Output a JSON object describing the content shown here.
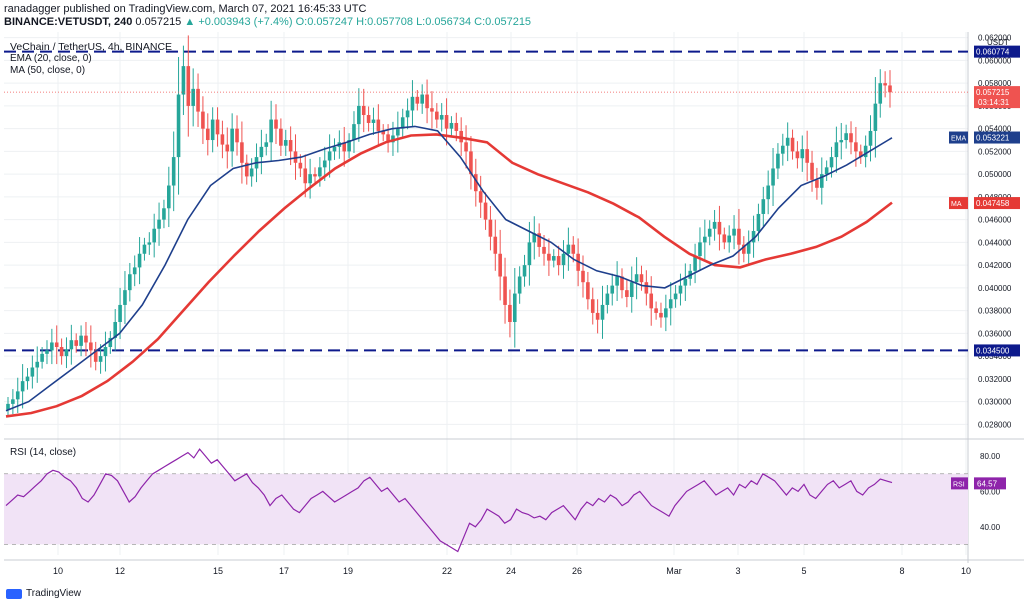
{
  "header": {
    "publisher_line": "ranadagger published on TradingView.com, March 07, 2021 16:45:33 UTC",
    "symbol": "BINANCE:VETUSDT, 240",
    "last": "0.057215",
    "change": "▲ +0.003943 (+7.4%)",
    "ohlc": "O:0.057247 H:0.057708 L:0.056734 C:0.057215"
  },
  "legend": {
    "title": "VeChain / TetherUS, 4h, BINANCE",
    "ema": "EMA (20, close, 0)",
    "ma": "MA (50, close, 0)",
    "rsi": "RSI (14, close)",
    "currency": "USDT"
  },
  "brand": "TradingView",
  "colors": {
    "up": "#26a69a",
    "down": "#ef5350",
    "ema": "#1e3f8c",
    "ma": "#e53935",
    "level": "#0d1a8c",
    "rsi": "#8e24aa",
    "rsi_band": "#f1e3f6"
  },
  "chart_data": [
    {
      "type": "candlestick",
      "title": "VeChain / TetherUS, 4h, BINANCE",
      "x_ticks": [
        "10",
        "12",
        "15",
        "17",
        "19",
        "22",
        "24",
        "26",
        "Mar",
        "3",
        "5",
        "8",
        "10"
      ],
      "y_ticks": [
        "0.028000",
        "0.030000",
        "0.032000",
        "0.034000",
        "0.036000",
        "0.038000",
        "0.040000",
        "0.042000",
        "0.044000",
        "0.046000",
        "0.048000",
        "0.050000",
        "0.052000",
        "0.054000",
        "0.056000",
        "0.058000",
        "0.060000",
        "0.062000"
      ],
      "ylim": [
        0.0268,
        0.0625
      ],
      "horizontal_levels": [
        {
          "value": 0.060774,
          "label": "0.060774"
        },
        {
          "value": 0.0345,
          "label": "0.034500"
        }
      ],
      "price_labels": {
        "last": "0.057215",
        "countdown": "03:14:31",
        "ema": "0.053221",
        "ma": "0.047458"
      },
      "series_names": [
        "EMA",
        "MA"
      ],
      "candles_close_approx": [
        0.0298,
        0.0302,
        0.0309,
        0.0318,
        0.0322,
        0.033,
        0.0335,
        0.0342,
        0.0345,
        0.0352,
        0.0348,
        0.034,
        0.0346,
        0.0354,
        0.0349,
        0.0358,
        0.0352,
        0.0345,
        0.0335,
        0.034,
        0.0348,
        0.0356,
        0.037,
        0.0385,
        0.0398,
        0.0412,
        0.0418,
        0.043,
        0.0438,
        0.044,
        0.0452,
        0.046,
        0.047,
        0.049,
        0.0515,
        0.057,
        0.0595,
        0.056,
        0.0575,
        0.0555,
        0.054,
        0.053,
        0.0548,
        0.0535,
        0.0526,
        0.052,
        0.054,
        0.0528,
        0.051,
        0.0498,
        0.0505,
        0.0515,
        0.0524,
        0.0528,
        0.0548,
        0.054,
        0.0525,
        0.053,
        0.052,
        0.051,
        0.0505,
        0.0492,
        0.05,
        0.0498,
        0.0506,
        0.0512,
        0.052,
        0.0524,
        0.0528,
        0.052,
        0.053,
        0.0544,
        0.056,
        0.0552,
        0.0545,
        0.0548,
        0.0538,
        0.0535,
        0.0528,
        0.0534,
        0.054,
        0.055,
        0.0556,
        0.0568,
        0.0562,
        0.057,
        0.0558,
        0.0555,
        0.0548,
        0.0552,
        0.054,
        0.0545,
        0.0538,
        0.0528,
        0.052,
        0.05,
        0.0485,
        0.0475,
        0.046,
        0.0445,
        0.043,
        0.041,
        0.0385,
        0.037,
        0.0395,
        0.041,
        0.042,
        0.044,
        0.0448,
        0.0436,
        0.043,
        0.0424,
        0.0428,
        0.042,
        0.043,
        0.0438,
        0.043,
        0.0415,
        0.0405,
        0.039,
        0.0378,
        0.0372,
        0.0385,
        0.0395,
        0.0402,
        0.041,
        0.0398,
        0.0392,
        0.0405,
        0.0412,
        0.0405,
        0.0395,
        0.0382,
        0.0378,
        0.0374,
        0.0382,
        0.039,
        0.0395,
        0.0402,
        0.0408,
        0.0415,
        0.0428,
        0.044,
        0.0445,
        0.0452,
        0.0458,
        0.0447,
        0.044,
        0.0446,
        0.0452,
        0.0438,
        0.043,
        0.044,
        0.045,
        0.0465,
        0.0478,
        0.049,
        0.0505,
        0.0518,
        0.0525,
        0.0532,
        0.052,
        0.0514,
        0.0522,
        0.051,
        0.0495,
        0.0488,
        0.05,
        0.0506,
        0.0515,
        0.0528,
        0.053,
        0.0536,
        0.0528,
        0.052,
        0.0515,
        0.0525,
        0.0538,
        0.0562,
        0.058,
        0.0578,
        0.0572
      ],
      "ema_approx": [
        0.0292,
        0.03,
        0.0315,
        0.033,
        0.0345,
        0.036,
        0.0385,
        0.042,
        0.046,
        0.049,
        0.0505,
        0.051,
        0.0512,
        0.0515,
        0.0522,
        0.0528,
        0.0535,
        0.054,
        0.0542,
        0.0538,
        0.0515,
        0.0485,
        0.046,
        0.045,
        0.044,
        0.0425,
        0.0415,
        0.041,
        0.0402,
        0.04,
        0.041,
        0.042,
        0.0428,
        0.0445,
        0.047,
        0.049,
        0.0498,
        0.0508,
        0.052,
        0.0532
      ],
      "ma_approx": [
        0.0287,
        0.029,
        0.0296,
        0.0305,
        0.0318,
        0.0335,
        0.0355,
        0.038,
        0.0405,
        0.0428,
        0.045,
        0.047,
        0.0488,
        0.0505,
        0.0518,
        0.0528,
        0.0534,
        0.0535,
        0.0532,
        0.0528,
        0.051,
        0.05,
        0.0492,
        0.0484,
        0.0474,
        0.0462,
        0.0445,
        0.043,
        0.042,
        0.0418,
        0.0425,
        0.043,
        0.0436,
        0.0445,
        0.0458,
        0.0475
      ]
    },
    {
      "type": "line",
      "title": "RSI (14, close)",
      "y_ticks": [
        "40.00",
        "60.00",
        "80.00"
      ],
      "ylim": [
        24,
        88
      ],
      "band": [
        30,
        70
      ],
      "last_label": "64.57",
      "series": [
        {
          "name": "RSI",
          "values": [
            52,
            55,
            58,
            57,
            60,
            63,
            66,
            70,
            72,
            71,
            68,
            66,
            62,
            56,
            54,
            58,
            64,
            70,
            69,
            66,
            60,
            54,
            57,
            62,
            66,
            70,
            72,
            74,
            76,
            78,
            80,
            82,
            79,
            84,
            80,
            76,
            78,
            74,
            70,
            66,
            68,
            70,
            65,
            62,
            58,
            52,
            56,
            58,
            54,
            50,
            48,
            52,
            56,
            58,
            60,
            57,
            54,
            56,
            58,
            60,
            62,
            66,
            68,
            64,
            60,
            62,
            58,
            54,
            56,
            52,
            48,
            44,
            40,
            36,
            32,
            30,
            28,
            26,
            34,
            42,
            40,
            44,
            50,
            48,
            46,
            42,
            44,
            50,
            48,
            47,
            45,
            46,
            44,
            48,
            50,
            52,
            48,
            44,
            50,
            54,
            52,
            56,
            54,
            58,
            56,
            52,
            54,
            58,
            60,
            56,
            52,
            50,
            48,
            46,
            52,
            56,
            60,
            62,
            64,
            66,
            62,
            58,
            60,
            62,
            58,
            64,
            62,
            66,
            64,
            70,
            68,
            66,
            62,
            58,
            62,
            60,
            64,
            58,
            56,
            60,
            64,
            66,
            62,
            64,
            66,
            60,
            58,
            62,
            64,
            67,
            66,
            65
          ]
        }
      ]
    }
  ]
}
